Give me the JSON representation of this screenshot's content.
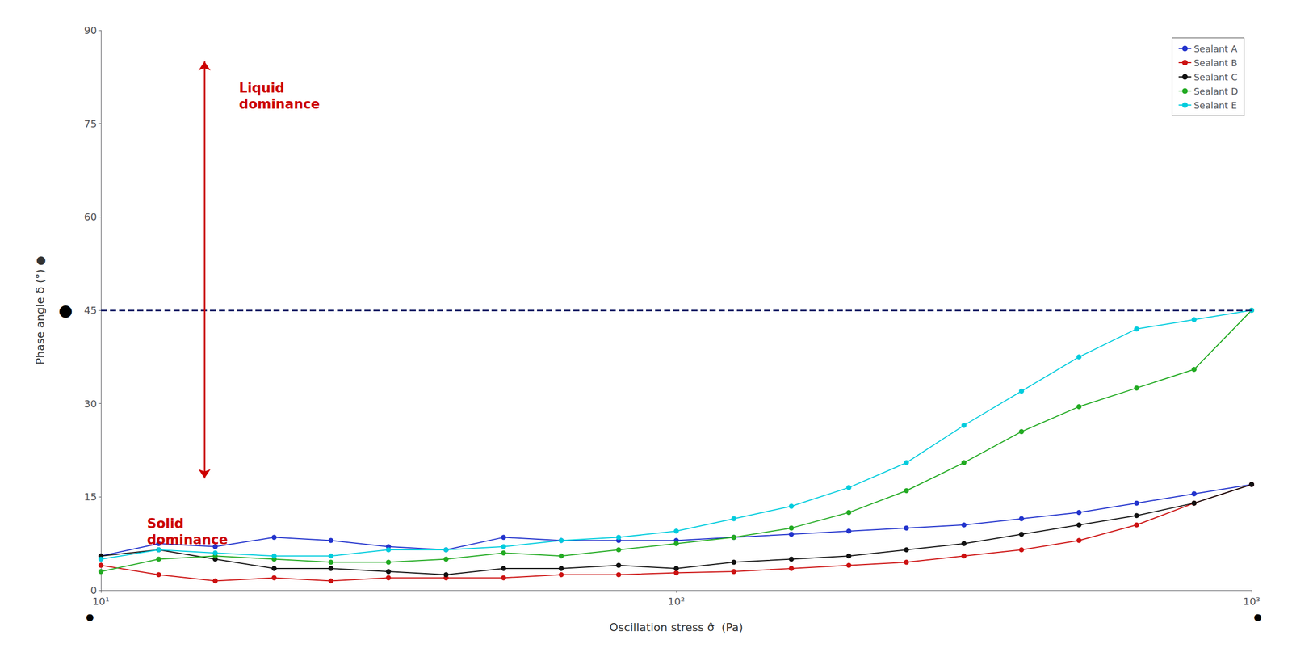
{
  "chart_data": {
    "type": "line",
    "xlabel": "Oscillation stress σ̂  (Pa)",
    "ylabel": "Phase angle δ (°) ●",
    "log": "x",
    "xlim": [
      10,
      1000
    ],
    "xticks": [
      {
        "value": 10,
        "label": "10¹"
      },
      {
        "value": 100,
        "label": "10²"
      },
      {
        "value": 1000,
        "label": "10³"
      }
    ],
    "ylim": [
      0,
      90
    ],
    "yticks": [
      0,
      15,
      30,
      45,
      60,
      75,
      90
    ],
    "grid": false,
    "legend": "upper right",
    "series": [
      {
        "name": "Sealant A",
        "color": "#2233cc",
        "marker": "circle",
        "x": [
          10.0,
          12.6,
          15.8,
          20.0,
          25.1,
          31.6,
          39.8,
          50.1,
          63.1,
          79.4,
          100.0,
          125.9,
          158.5,
          199.5,
          251.2,
          316.2,
          398.1,
          501.2,
          631.0,
          794.3,
          1000.0
        ],
        "values": [
          5.5,
          7.5,
          7.0,
          8.5,
          8.0,
          7.0,
          6.5,
          8.5,
          8.0,
          8.0,
          8.0,
          8.5,
          9.0,
          9.5,
          10.0,
          10.5,
          11.5,
          12.5,
          14.0,
          15.5,
          17.0
        ]
      },
      {
        "name": "Sealant B",
        "color": "#cc1111",
        "marker": "circle",
        "x": [
          10.0,
          12.6,
          15.8,
          20.0,
          25.1,
          31.6,
          39.8,
          50.1,
          63.1,
          79.4,
          100.0,
          125.9,
          158.5,
          199.5,
          251.2,
          316.2,
          398.1,
          501.2,
          631.0,
          794.3,
          1000.0
        ],
        "values": [
          4.0,
          2.5,
          1.5,
          2.0,
          1.5,
          2.0,
          2.0,
          2.0,
          2.5,
          2.5,
          2.8,
          3.0,
          3.5,
          4.0,
          4.5,
          5.5,
          6.5,
          8.0,
          10.5,
          14.0,
          17.0
        ]
      },
      {
        "name": "Sealant C",
        "color": "#111111",
        "marker": "circle",
        "x": [
          10.0,
          12.6,
          15.8,
          20.0,
          25.1,
          31.6,
          39.8,
          50.1,
          63.1,
          79.4,
          100.0,
          125.9,
          158.5,
          199.5,
          251.2,
          316.2,
          398.1,
          501.2,
          631.0,
          794.3,
          1000.0
        ],
        "values": [
          5.5,
          6.5,
          5.0,
          3.5,
          3.5,
          3.0,
          2.5,
          3.5,
          3.5,
          4.0,
          3.5,
          4.5,
          5.0,
          5.5,
          6.5,
          7.5,
          9.0,
          10.5,
          12.0,
          14.0,
          17.0
        ]
      },
      {
        "name": "Sealant D",
        "color": "#22aa22",
        "marker": "circle",
        "x": [
          10.0,
          12.6,
          15.8,
          20.0,
          25.1,
          31.6,
          39.8,
          50.1,
          63.1,
          79.4,
          100.0,
          125.9,
          158.5,
          199.5,
          251.2,
          316.2,
          398.1,
          501.2,
          631.0,
          794.3,
          1000.0
        ],
        "values": [
          3.0,
          5.0,
          5.5,
          5.0,
          4.5,
          4.5,
          5.0,
          6.0,
          5.5,
          6.5,
          7.5,
          8.5,
          10.0,
          12.5,
          16.0,
          20.5,
          25.5,
          29.5,
          32.5,
          35.5,
          45.0
        ]
      },
      {
        "name": "Sealant E",
        "color": "#00ccdd",
        "marker": "circle",
        "x": [
          10.0,
          12.6,
          15.8,
          20.0,
          25.1,
          31.6,
          39.8,
          50.1,
          63.1,
          79.4,
          100.0,
          125.9,
          158.5,
          199.5,
          251.2,
          316.2,
          398.1,
          501.2,
          631.0,
          794.3,
          1000.0
        ],
        "values": [
          5.0,
          6.5,
          6.0,
          5.5,
          5.5,
          6.5,
          6.5,
          7.0,
          8.0,
          8.5,
          9.5,
          11.5,
          13.5,
          16.5,
          20.5,
          26.5,
          32.0,
          37.5,
          42.0,
          43.5,
          45.0
        ]
      }
    ],
    "hlines": [
      {
        "y": 45,
        "color": "#1a2369",
        "line_style": "dashed"
      }
    ],
    "arrow": {
      "x": 15.135612484362087,
      "y_top": 85,
      "y_bottom": 18,
      "color": "#cc0000"
    },
    "annotations": [
      {
        "text": "Liquid\ndominance",
        "x": 17.378008287493763,
        "y": 82,
        "color": "#cc0000"
      },
      {
        "text": "Solid\ndominance",
        "x": 12.022644346174133,
        "y": 12,
        "color": "#cc0000"
      },
      {
        "text": "●",
        "color": "#000000"
      },
      {
        "text": "●",
        "color": "#000000"
      },
      {
        "text": "●",
        "color": "#000000"
      }
    ]
  }
}
